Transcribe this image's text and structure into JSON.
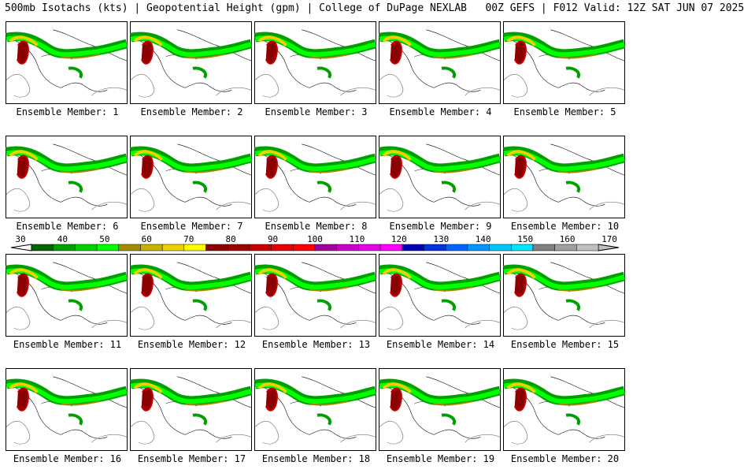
{
  "header": {
    "title": "500mb Isotachs (kts) | Geopotential Height (gpm) | College of DuPage NEXLAB   00Z GEFS | F012 Valid: 12Z SAT JUN 07 2025"
  },
  "members": [
    "Ensemble Member: 1",
    "Ensemble Member: 2",
    "Ensemble Member: 3",
    "Ensemble Member: 4",
    "Ensemble Member: 5",
    "Ensemble Member: 6",
    "Ensemble Member: 7",
    "Ensemble Member: 8",
    "Ensemble Member: 9",
    "Ensemble Member: 10",
    "Ensemble Member: 11",
    "Ensemble Member: 12",
    "Ensemble Member: 13",
    "Ensemble Member: 14",
    "Ensemble Member: 15",
    "Ensemble Member: 16",
    "Ensemble Member: 17",
    "Ensemble Member: 18",
    "Ensemble Member: 19",
    "Ensemble Member: 20"
  ],
  "legend": {
    "ticks": [
      "30",
      "40",
      "50",
      "60",
      "70",
      "80",
      "90",
      "100",
      "110",
      "120",
      "130",
      "140",
      "150",
      "160",
      "170"
    ],
    "colors": [
      "#006400",
      "#00a000",
      "#00d200",
      "#00ff00",
      "#a08c00",
      "#c8b400",
      "#ebd200",
      "#ffff00",
      "#8b0000",
      "#a00000",
      "#c80000",
      "#e60000",
      "#ff0000",
      "#a000a0",
      "#c800c8",
      "#e600e6",
      "#ff00ff",
      "#0000b4",
      "#0032dc",
      "#0064ff",
      "#0096ff",
      "#00c8ff",
      "#00e6ff",
      "#808080",
      "#a0a0a0",
      "#c0c0c0"
    ]
  }
}
